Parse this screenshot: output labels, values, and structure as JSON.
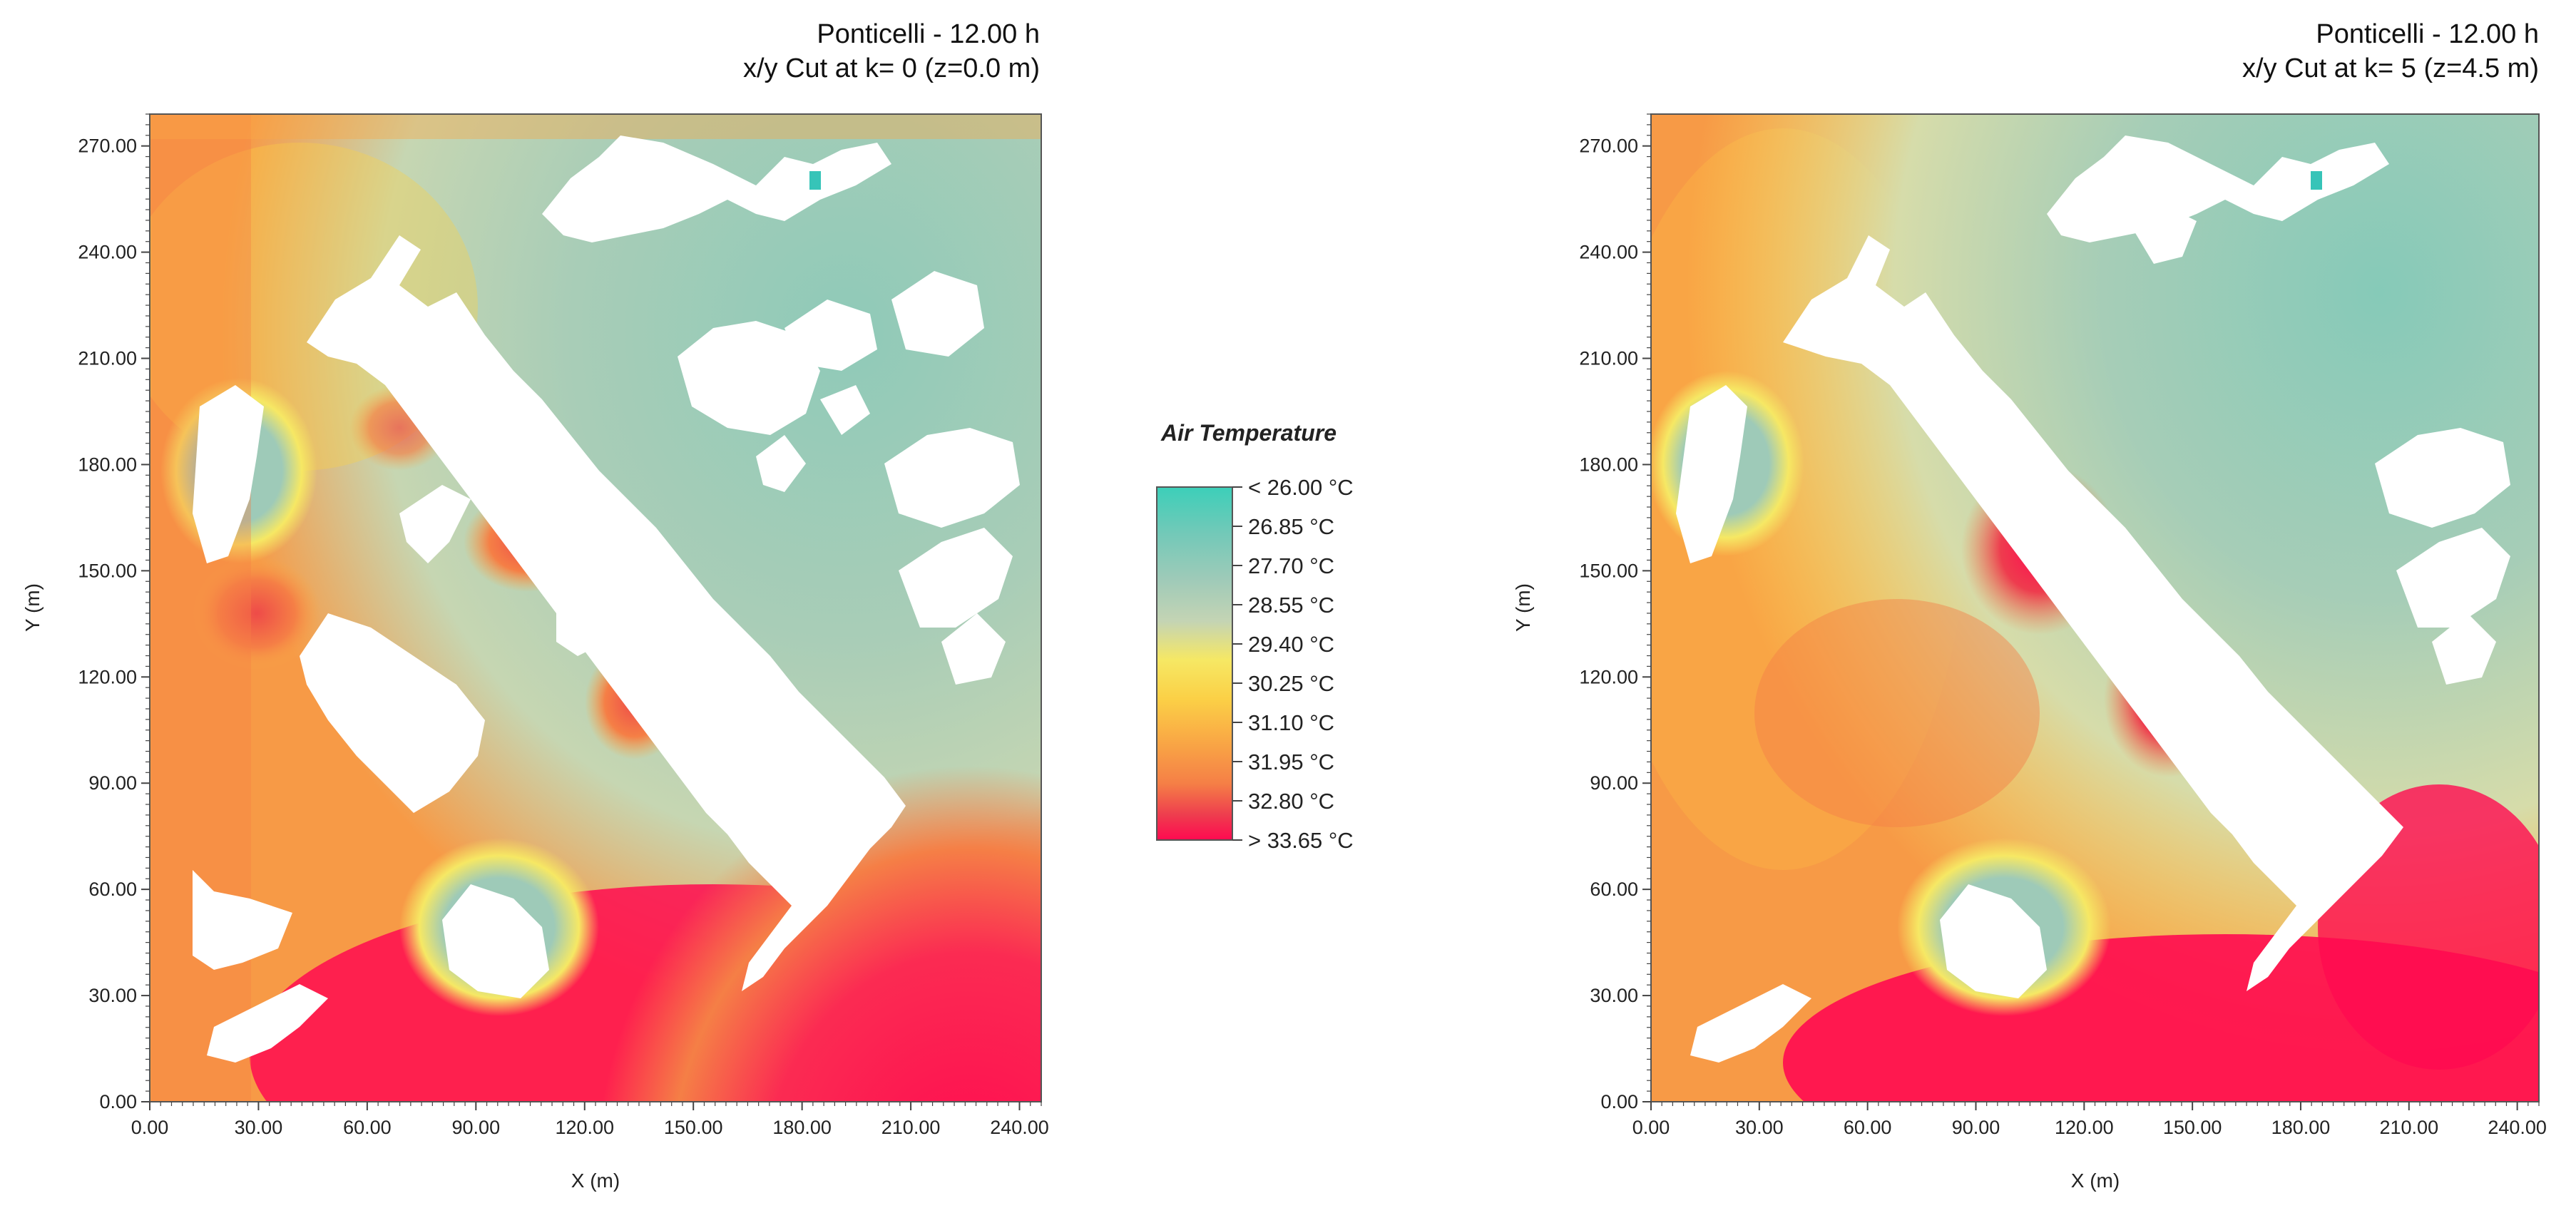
{
  "chart_data": [
    {
      "type": "heatmap",
      "title": "Ponticelli - 12.00 h",
      "subtitle": "x/y Cut at k= 0 (z=0.0 m)",
      "xlabel": "X (m)",
      "ylabel": "Y (m)",
      "xlim": [
        0,
        246
      ],
      "ylim": [
        0,
        279
      ],
      "xticks": [
        "0.00",
        "30.00",
        "60.00",
        "90.00",
        "120.00",
        "150.00",
        "180.00",
        "210.00",
        "240.00"
      ],
      "yticks": [
        "0.00",
        "30.00",
        "60.00",
        "90.00",
        "120.00",
        "150.00",
        "180.00",
        "210.00",
        "240.00",
        "270.00"
      ]
    },
    {
      "type": "heatmap",
      "title": "Ponticelli - 12.00 h",
      "subtitle": "x/y Cut at k= 5 (z=4.5 m)",
      "xlabel": "X (m)",
      "ylabel": "Y (m)",
      "xlim": [
        0,
        246
      ],
      "ylim": [
        0,
        279
      ],
      "xticks": [
        "0.00",
        "30.00",
        "60.00",
        "90.00",
        "120.00",
        "150.00",
        "180.00",
        "210.00",
        "240.00"
      ],
      "yticks": [
        "0.00",
        "30.00",
        "60.00",
        "90.00",
        "120.00",
        "150.00",
        "180.00",
        "210.00",
        "240.00",
        "270.00"
      ]
    }
  ],
  "legend": {
    "title": "Air Temperature",
    "entries": [
      "< 26.00 °C",
      "26.85  °C",
      "27.70  °C",
      "28.55  °C",
      "29.40  °C",
      "30.25  °C",
      "31.10  °C",
      "31.95  °C",
      "32.80  °C",
      "> 33.65 °C"
    ],
    "colors": [
      "#3ccfb9",
      "#72c9b8",
      "#9ecab8",
      "#c4d4b4",
      "#f6e864",
      "#fbd046",
      "#f9a845",
      "#f57f46",
      "#ee3c4e",
      "#ff0a50"
    ]
  }
}
